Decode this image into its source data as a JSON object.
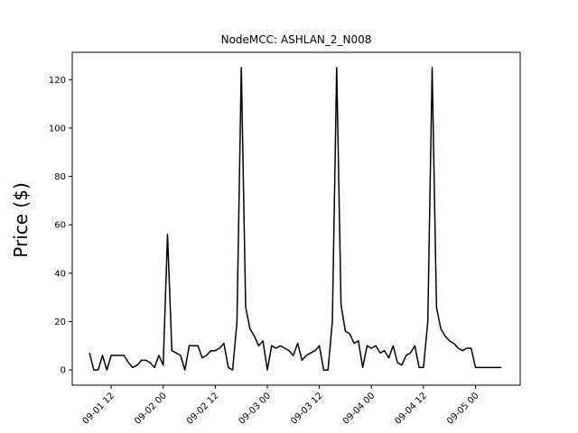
{
  "chart_data": {
    "type": "line",
    "title": "NodeMCC: ASHLAN_2_N008",
    "xlabel": "",
    "ylabel": "Price ($)",
    "ylim": [
      -6.3,
      131.3
    ],
    "xlim": [
      "2016-09-01 03:02",
      "2016-09-05 10:18"
    ],
    "grid": false,
    "line_color": "#000000",
    "x_ticks": [
      "2016-09-01 12:00",
      "2016-09-02 00:00",
      "2016-09-02 12:00",
      "2016-09-03 00:00",
      "2016-09-03 12:00",
      "2016-09-04 00:00",
      "2016-09-04 12:00",
      "2016-09-05 00:00"
    ],
    "x_tick_labels": [
      "09-01 12",
      "09-02 00",
      "09-02 12",
      "09-03 00",
      "09-03 12",
      "09-04 00",
      "09-04 12",
      "09-05 00"
    ],
    "y_ticks": [
      0,
      20,
      40,
      60,
      80,
      100,
      120
    ],
    "y_tick_labels": [
      "0",
      "20",
      "40",
      "60",
      "80",
      "100",
      "120"
    ],
    "series": [
      {
        "name": "",
        "x": [
          "2016-09-01 07:00",
          "2016-09-01 08:00",
          "2016-09-01 09:00",
          "2016-09-01 10:00",
          "2016-09-01 11:00",
          "2016-09-01 12:00",
          "2016-09-01 13:00",
          "2016-09-01 14:00",
          "2016-09-01 15:00",
          "2016-09-01 16:00",
          "2016-09-01 17:00",
          "2016-09-01 18:00",
          "2016-09-01 19:00",
          "2016-09-01 20:00",
          "2016-09-01 21:00",
          "2016-09-01 22:00",
          "2016-09-01 23:00",
          "2016-09-02 00:00",
          "2016-09-02 01:00",
          "2016-09-02 02:00",
          "2016-09-02 03:00",
          "2016-09-02 04:00",
          "2016-09-02 05:00",
          "2016-09-02 06:00",
          "2016-09-02 07:00",
          "2016-09-02 08:00",
          "2016-09-02 09:00",
          "2016-09-02 10:00",
          "2016-09-02 11:00",
          "2016-09-02 12:00",
          "2016-09-02 13:00",
          "2016-09-02 14:00",
          "2016-09-02 15:00",
          "2016-09-02 16:00",
          "2016-09-02 17:00",
          "2016-09-02 18:00",
          "2016-09-02 19:00",
          "2016-09-02 20:00",
          "2016-09-02 21:00",
          "2016-09-02 22:00",
          "2016-09-02 23:00",
          "2016-09-03 00:00",
          "2016-09-03 01:00",
          "2016-09-03 02:00",
          "2016-09-03 03:00",
          "2016-09-03 04:00",
          "2016-09-03 05:00",
          "2016-09-03 06:00",
          "2016-09-03 07:00",
          "2016-09-03 08:00",
          "2016-09-03 09:00",
          "2016-09-03 10:00",
          "2016-09-03 11:00",
          "2016-09-03 12:00",
          "2016-09-03 13:00",
          "2016-09-03 14:00",
          "2016-09-03 15:00",
          "2016-09-03 16:00",
          "2016-09-03 17:00",
          "2016-09-03 18:00",
          "2016-09-03 19:00",
          "2016-09-03 20:00",
          "2016-09-03 21:00",
          "2016-09-03 22:00",
          "2016-09-03 23:00",
          "2016-09-04 00:00",
          "2016-09-04 01:00",
          "2016-09-04 02:00",
          "2016-09-04 03:00",
          "2016-09-04 04:00",
          "2016-09-04 05:00",
          "2016-09-04 06:00",
          "2016-09-04 07:00",
          "2016-09-04 08:00",
          "2016-09-04 09:00",
          "2016-09-04 10:00",
          "2016-09-04 11:00",
          "2016-09-04 12:00",
          "2016-09-04 13:00",
          "2016-09-04 14:00",
          "2016-09-04 15:00",
          "2016-09-04 16:00",
          "2016-09-04 17:00",
          "2016-09-04 18:00",
          "2016-09-04 19:00",
          "2016-09-04 20:00",
          "2016-09-04 21:00",
          "2016-09-04 22:00",
          "2016-09-04 23:00",
          "2016-09-05 00:00",
          "2016-09-05 01:00",
          "2016-09-05 02:00",
          "2016-09-05 03:00",
          "2016-09-05 04:00",
          "2016-09-05 05:00",
          "2016-09-05 06:00"
        ],
        "y": [
          7,
          0,
          0,
          6,
          0,
          6,
          6,
          6,
          6,
          3,
          1,
          2,
          4,
          4,
          3,
          1,
          6,
          2,
          56,
          8,
          7,
          6,
          0,
          10,
          10,
          10,
          5,
          6,
          8,
          8,
          9,
          11,
          1,
          0,
          20,
          125,
          26,
          17,
          14,
          10,
          12,
          0,
          10,
          9,
          10,
          9,
          8,
          6,
          11,
          4,
          6,
          7,
          8,
          10,
          0,
          0,
          20,
          125,
          27,
          16,
          15,
          11,
          12,
          1,
          10,
          9,
          10,
          7,
          8,
          5,
          10,
          3,
          2,
          6,
          7,
          10,
          1,
          1,
          20,
          125,
          26,
          17,
          14,
          12,
          11,
          9,
          8,
          9,
          9,
          1,
          1,
          1,
          1,
          1,
          1,
          1
        ]
      }
    ]
  }
}
